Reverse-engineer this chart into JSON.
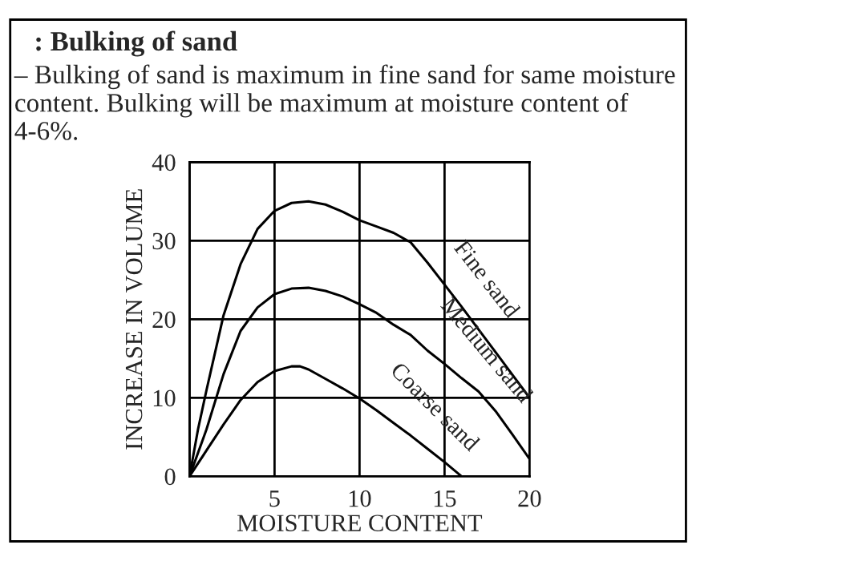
{
  "chart_data": {
    "type": "line",
    "title": ": Bulking of sand",
    "subtitle": "– Bulking of sand is maximum in fine sand for same moisture content. Bulking will be maximum at moisture content of 4-6%.",
    "xlabel": "MOISTURE CONTENT",
    "ylabel": "INCREASE IN VOLUME",
    "series": [
      {
        "color": "#000000",
        "x": [
          0,
          0.5,
          1,
          2,
          3,
          4,
          5,
          6,
          7,
          8,
          9,
          10,
          11,
          12,
          13,
          14,
          15,
          16,
          17,
          18,
          19,
          20
        ],
        "values": [
          0,
          6,
          11,
          20.5,
          27,
          31.5,
          33.8,
          34.8,
          35,
          34.6,
          33.7,
          32.6,
          31.8,
          31,
          29.8,
          27.2,
          24.4,
          21.6,
          18.7,
          15.8,
          12.9,
          10
        ]
      },
      {
        "color": "#000000",
        "x": [
          0,
          1,
          2,
          3,
          4,
          5,
          6,
          7,
          8,
          9,
          10,
          11,
          12,
          13,
          14,
          15,
          16,
          17,
          18,
          19,
          20
        ],
        "values": [
          0,
          6,
          13,
          18.5,
          21.5,
          23.2,
          23.9,
          24,
          23.6,
          22.9,
          21.9,
          20.8,
          19.3,
          18,
          16,
          14.3,
          12.5,
          10.8,
          8.3,
          5.3,
          2.2
        ]
      },
      {
        "color": "#000000",
        "x": [
          0,
          1,
          2,
          3,
          4,
          5,
          6,
          6.5,
          7,
          8,
          9,
          10,
          11,
          12,
          13,
          14,
          15,
          16
        ],
        "values": [
          0,
          3.3,
          6.6,
          9.7,
          12,
          13.4,
          14,
          14,
          13.6,
          12.4,
          11.2,
          9.9,
          8.4,
          6.8,
          5.2,
          3.5,
          1.8,
          0
        ]
      }
    ],
    "annotations": [
      "Fine sand",
      "Medium sand",
      "Coarse sand"
    ],
    "xlim": [
      0,
      20
    ],
    "ylim": [
      0,
      40
    ],
    "xticks": [
      {
        "value": 0,
        "label": null
      },
      5,
      10,
      15,
      20
    ],
    "yticks": [
      0,
      10,
      20,
      30,
      40
    ],
    "grid": true,
    "line_style": "solid",
    "marker": "none"
  }
}
